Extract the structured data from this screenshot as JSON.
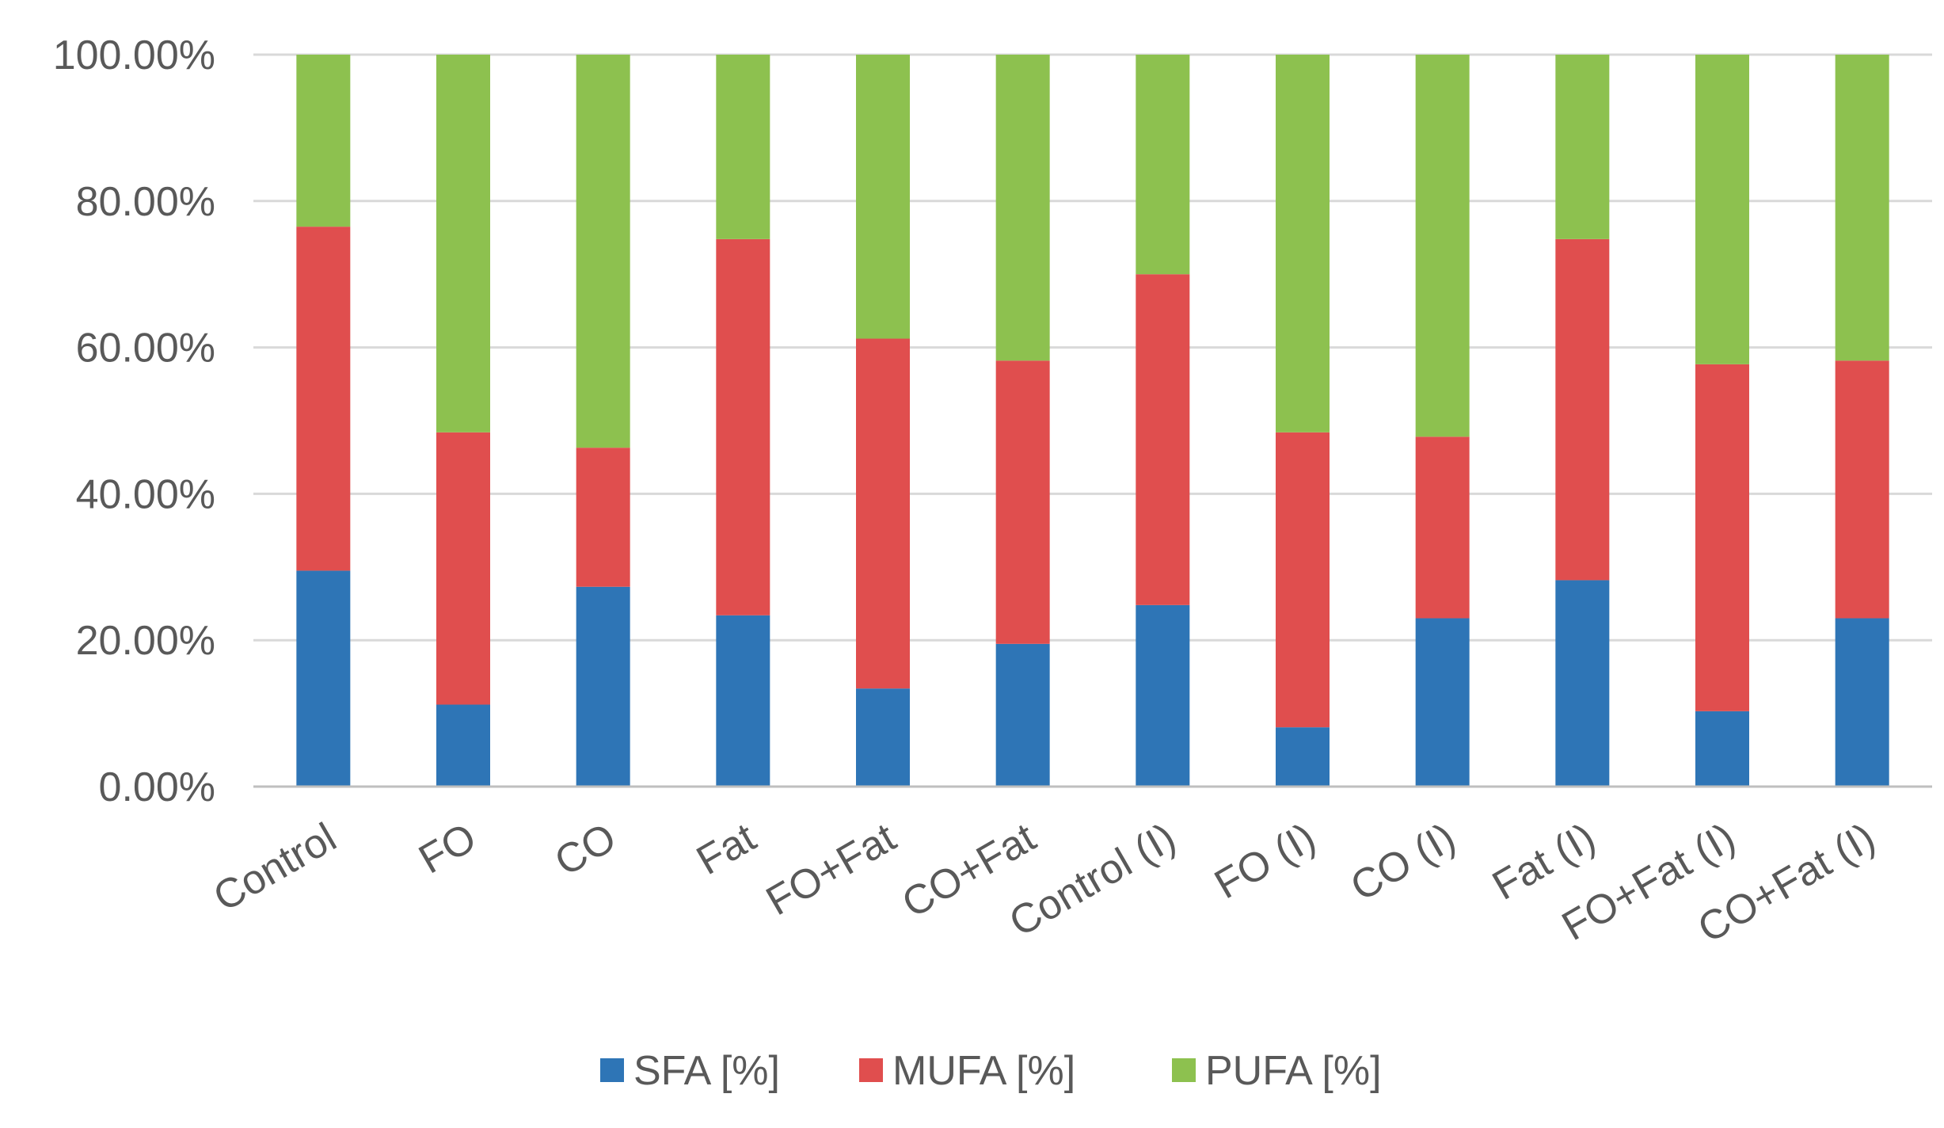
{
  "chart_data": {
    "type": "bar",
    "stacked": true,
    "title": "",
    "xlabel": "",
    "ylabel": "",
    "ylim": [
      0,
      100
    ],
    "y_ticks": [
      "0.00%",
      "20.00%",
      "40.00%",
      "60.00%",
      "80.00%",
      "100.00%"
    ],
    "categories": [
      "Control",
      "FO",
      "CO",
      "Fat",
      "FO+Fat",
      "CO+Fat",
      "Control (I)",
      "FO (I)",
      "CO (I)",
      "Fat (I)",
      "FO+Fat (I)",
      "CO+Fat (I)"
    ],
    "series": [
      {
        "name": "SFA [%]",
        "color": "#2e75b6",
        "values": [
          29.5,
          11.2,
          27.3,
          23.4,
          13.4,
          19.5,
          24.8,
          8.1,
          23.0,
          28.2,
          10.3,
          23.0
        ]
      },
      {
        "name": "MUFA [%]",
        "color": "#e04e4e",
        "values": [
          47.0,
          37.2,
          19.0,
          51.4,
          47.8,
          38.7,
          45.2,
          40.3,
          24.8,
          46.6,
          47.4,
          35.2
        ]
      },
      {
        "name": "PUFA [%]",
        "color": "#8dc14f",
        "values": [
          23.5,
          51.6,
          53.7,
          25.2,
          38.8,
          41.8,
          30.0,
          51.6,
          52.2,
          25.2,
          42.3,
          41.8
        ]
      }
    ],
    "legend_position": "bottom",
    "grid": true
  }
}
